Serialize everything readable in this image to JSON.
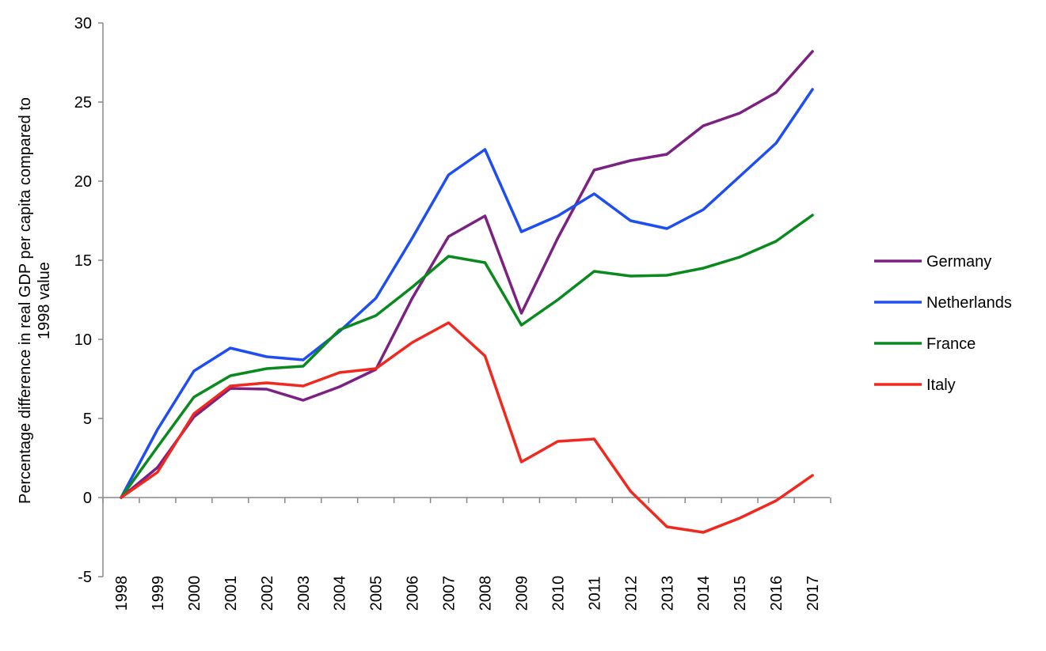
{
  "chart_data": {
    "type": "line",
    "title": "",
    "xlabel": "",
    "ylabel_lines": [
      "Percentage difference in real GDP per capita compared to",
      "1998 value"
    ],
    "ylim": [
      -5,
      30
    ],
    "yticks": [
      -5,
      0,
      5,
      10,
      15,
      20,
      25,
      30
    ],
    "grid": false,
    "legend_position": "right",
    "categories": [
      "1998",
      "1999",
      "2000",
      "2001",
      "2002",
      "2003",
      "2004",
      "2005",
      "2006",
      "2007",
      "2008",
      "2009",
      "2010",
      "2011",
      "2012",
      "2013",
      "2014",
      "2015",
      "2016",
      "2017"
    ],
    "series": [
      {
        "name": "Germany",
        "color": "#7b2181",
        "values": [
          0,
          1.9,
          5.1,
          6.9,
          6.85,
          6.15,
          7.0,
          8.1,
          12.6,
          16.5,
          17.8,
          11.65,
          16.4,
          20.7,
          21.3,
          21.7,
          23.5,
          24.3,
          25.6,
          28.2
        ]
      },
      {
        "name": "Netherlands",
        "color": "#1f4ef0",
        "values": [
          0,
          4.3,
          8.0,
          9.45,
          8.9,
          8.7,
          10.5,
          12.6,
          16.4,
          20.4,
          22.0,
          16.8,
          17.8,
          19.2,
          17.5,
          17.0,
          18.2,
          20.3,
          22.4,
          25.8
        ]
      },
      {
        "name": "France",
        "color": "#0a8a1e",
        "values": [
          0,
          3.2,
          6.35,
          7.7,
          8.15,
          8.3,
          10.6,
          11.5,
          13.3,
          15.25,
          14.85,
          10.9,
          12.5,
          14.3,
          14.0,
          14.05,
          14.5,
          15.2,
          16.2,
          17.85
        ]
      },
      {
        "name": "Italy",
        "color": "#f0281e",
        "values": [
          0,
          1.6,
          5.3,
          7.05,
          7.25,
          7.05,
          7.9,
          8.15,
          9.8,
          11.05,
          8.95,
          2.25,
          3.55,
          3.7,
          0.4,
          -1.85,
          -2.2,
          -1.3,
          -0.2,
          1.4
        ]
      }
    ]
  }
}
